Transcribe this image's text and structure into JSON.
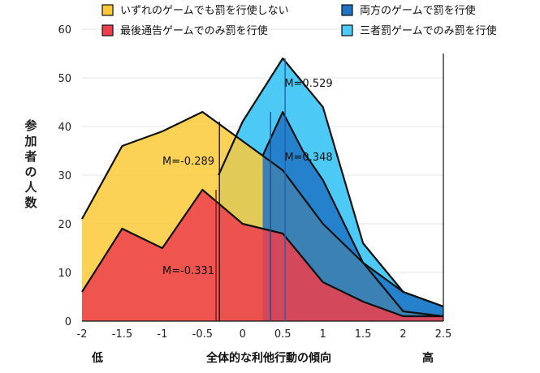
{
  "chart_data": {
    "type": "area",
    "ylabel": "参加者の人数",
    "xlabel": "全体的な利他行動の傾向",
    "x_low_label": "低",
    "x_high_label": "高",
    "xlim": [
      -2,
      2.5
    ],
    "ylim": [
      0,
      60
    ],
    "x_ticks": [
      "-2",
      "-1.5",
      "-1",
      "-0.5",
      "0",
      "0.5",
      "1",
      "1.5",
      "2",
      "2.5"
    ],
    "x_tick_values": [
      -2,
      -1.5,
      -1,
      -0.5,
      0,
      0.5,
      1,
      1.5,
      2,
      2.5
    ],
    "y_ticks": [
      "0",
      "10",
      "20",
      "30",
      "40",
      "50",
      "60"
    ],
    "y_tick_values": [
      0,
      10,
      20,
      30,
      40,
      50,
      60
    ],
    "grid": true,
    "legend_position": "top",
    "series": [
      {
        "name": "三者罰ゲームでのみ罰を行使",
        "color": "#4cc9f5",
        "points": [
          [
            -0.3,
            30
          ],
          [
            0,
            41
          ],
          [
            0.5,
            54
          ],
          [
            1,
            44
          ],
          [
            1.5,
            16
          ],
          [
            2,
            6
          ],
          [
            2.5,
            3
          ]
        ],
        "mean_label": "M=0.529",
        "mean": 0.529
      },
      {
        "name": "いずれのゲームでも罰を行使しない",
        "color": "#fac93a",
        "points": [
          [
            -2,
            21
          ],
          [
            -1.5,
            36
          ],
          [
            -1,
            39
          ],
          [
            -0.5,
            43
          ],
          [
            0,
            37
          ],
          [
            0.5,
            31
          ],
          [
            1,
            20
          ],
          [
            1.5,
            12
          ],
          [
            2,
            2
          ],
          [
            2.5,
            1
          ]
        ],
        "mean_label": "M=-0.289",
        "mean": -0.289
      },
      {
        "name": "両方のゲームで罰を行使",
        "color": "#1f75c4",
        "points": [
          [
            0.25,
            34
          ],
          [
            0.5,
            43
          ],
          [
            0.75,
            35
          ],
          [
            1,
            29
          ],
          [
            1.5,
            12
          ],
          [
            2,
            6
          ],
          [
            2.5,
            3
          ]
        ],
        "mean_label": "M=0.348",
        "mean": 0.348
      },
      {
        "name": "最後通告ゲームでのみ罰を行使",
        "color": "#ee3f4d",
        "points": [
          [
            -2,
            6
          ],
          [
            -1.5,
            19
          ],
          [
            -1,
            15
          ],
          [
            -0.5,
            27
          ],
          [
            0,
            20
          ],
          [
            0.5,
            18
          ],
          [
            1,
            8
          ],
          [
            1.5,
            4
          ],
          [
            2,
            1
          ],
          [
            2.5,
            1
          ]
        ],
        "mean_label": "M=-0.331",
        "mean": -0.331
      }
    ],
    "legend": [
      {
        "label": "いずれのゲームでも罰を行使しない",
        "color": "#fac93a"
      },
      {
        "label": "両方のゲームで罰を行使",
        "color": "#1f75c4"
      },
      {
        "label": "最後通告ゲームでのみ罰を行使",
        "color": "#ee3f4d"
      },
      {
        "label": "三者罰ゲームでのみ罰を行使",
        "color": "#4cc9f5"
      }
    ]
  }
}
